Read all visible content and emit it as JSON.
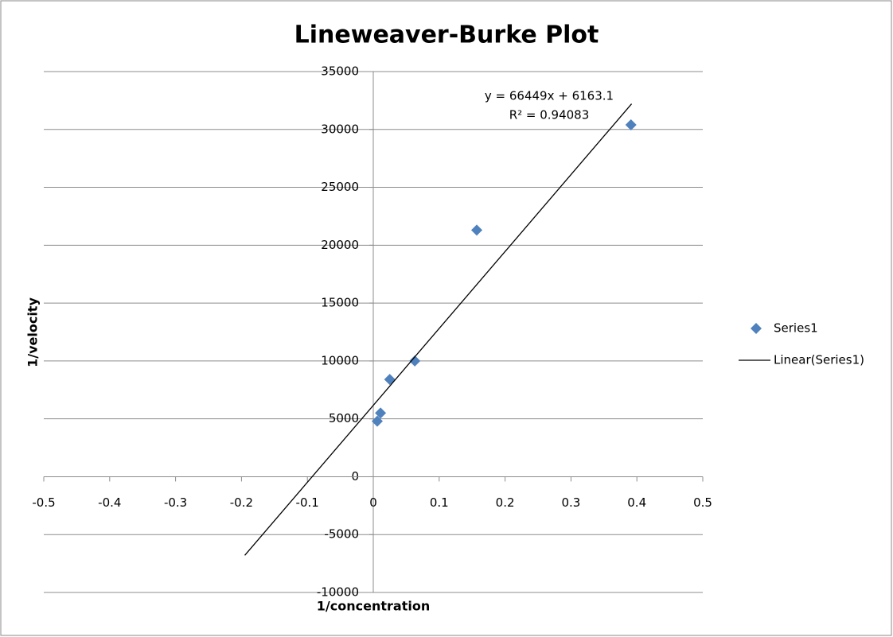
{
  "chart_data": {
    "type": "scatter",
    "title": "Lineweaver-Burke Plot",
    "x_label": "1/concentration",
    "y_label": "1/velocity",
    "xlim": [
      -0.5,
      0.5
    ],
    "xticks": [
      -0.5,
      -0.4,
      -0.3,
      -0.2,
      -0.1,
      0,
      0.1,
      0.2,
      0.3,
      0.4,
      0.5
    ],
    "ylim": [
      -10000,
      35000
    ],
    "yticks": [
      -10000,
      -5000,
      0,
      5000,
      10000,
      15000,
      20000,
      25000,
      30000,
      35000
    ],
    "grid": true,
    "legend": "right",
    "series": [
      {
        "name": "Series1",
        "color": "#4f81bd",
        "x": [
          0.006,
          0.011,
          0.025,
          0.063,
          0.157,
          0.391
        ],
        "values": [
          4800,
          5500,
          8400,
          10000,
          21300,
          30400
        ]
      }
    ],
    "trendline": {
      "name": "Linear(Series1)",
      "color": "#000000",
      "x": [
        -0.195,
        0.392
      ],
      "values": [
        -6794,
        32211
      ],
      "equation": "y = 66449x + 6163.1",
      "r_squared": "R² = 0.94083"
    }
  }
}
